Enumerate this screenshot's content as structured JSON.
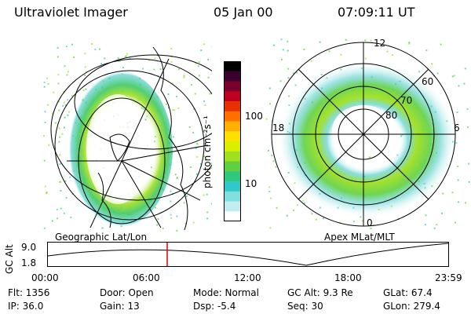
{
  "header": {
    "instrument": "Ultraviolet Imager",
    "date": "05 Jan 00",
    "time": "07:09:11 UT"
  },
  "colorbar": {
    "unit_label": "photon cm⁻²s⁻¹",
    "ticks": [
      "100",
      "10"
    ],
    "colors": [
      "#000000",
      "#3b0030",
      "#7a0030",
      "#c00020",
      "#e83000",
      "#ff7000",
      "#ffb000",
      "#ffe000",
      "#d8f000",
      "#a0e020",
      "#60d040",
      "#30c880",
      "#30c8c8",
      "#80e0e0",
      "#c0eef0",
      "#ffffff"
    ]
  },
  "left_panel": {
    "label": "Geographic Lat/Lon"
  },
  "right_panel": {
    "label": "Apex  MLat/MLT",
    "mlt_labels": {
      "top": "12",
      "left": "18",
      "right": "6",
      "bottom": "0"
    },
    "lat_labels": [
      "60",
      "70",
      "80"
    ]
  },
  "timeline": {
    "ylabel": "GC Alt",
    "yticks": [
      "9.0",
      "1.8"
    ],
    "xticks": [
      "00:00",
      "06:00",
      "12:00",
      "18:00",
      "23:59"
    ],
    "current_marker_time": "07:09",
    "marker_color": "#e00000"
  },
  "info": {
    "flt": "Flt: 1356",
    "ip": "IP: 36.0",
    "door": "Door: Open",
    "gain": "Gain: 13",
    "mode": "Mode: Normal",
    "dsp": "Dsp:    -5.4",
    "gcalt": "GC Alt: 9.3 Re",
    "seq": "Seq: 30",
    "glat": "GLat:  67.4",
    "glon": "GLon: 279.4"
  }
}
